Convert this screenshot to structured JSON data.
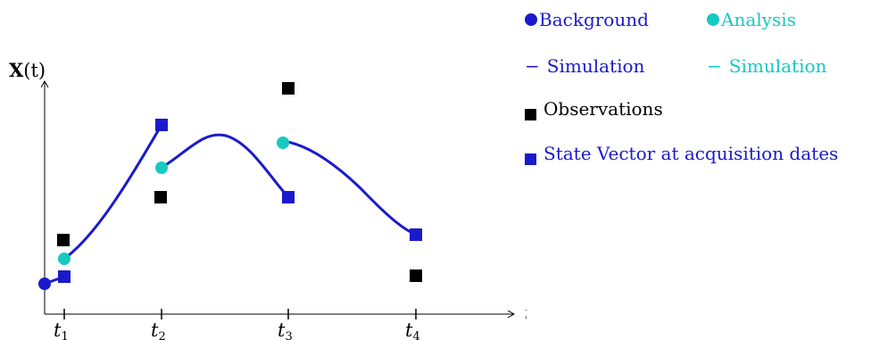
{
  "axes": {
    "y_label_bold": "X",
    "y_label_rest": "(t)",
    "x_label": "t",
    "ticks": [
      {
        "base": "t",
        "sub": "1"
      },
      {
        "base": "t",
        "sub": "2"
      },
      {
        "base": "t",
        "sub": "3"
      },
      {
        "base": "t",
        "sub": "4"
      }
    ]
  },
  "legend": {
    "background": "Background",
    "analysis": "Analysis",
    "simulation_background": "Simulation",
    "simulation_analysis": "Simulation",
    "observations": "Observations",
    "state_vector": "State Vector at acquisition dates",
    "dash_glyph": "−"
  },
  "colors": {
    "background": "#1a1acc",
    "analysis": "#17c9c0",
    "observations": "#000000",
    "state_vector": "#1a1acc",
    "curve": "#1a1acc"
  }
}
